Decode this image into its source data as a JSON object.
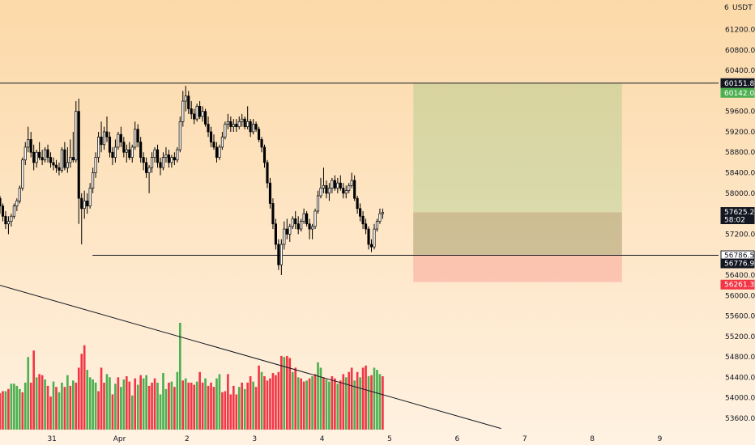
{
  "chart_data": {
    "type": "candlestick",
    "currency": "USDT",
    "price_range": [
      53400,
      62400
    ],
    "price_ticks": [
      53600,
      54000,
      54400,
      54800,
      55200,
      55600,
      56000,
      56400,
      56800,
      57200,
      57600,
      58000,
      58400,
      58800,
      59200,
      59600,
      60000,
      60400,
      60800,
      61200
    ],
    "price_tick_labels": [
      "53600.00",
      "54000.00",
      "54400.00",
      "54800.00",
      "55200.00",
      "55600.00",
      "56000.00",
      "56400.00",
      "56800.00",
      "57200.00",
      "57600.00",
      "58000.00",
      "58400.00",
      "58800.00",
      "59200.00",
      "59600.00",
      "60000.00",
      "60400.00",
      "60800.00",
      "61200.00"
    ],
    "time_labels": [
      "31",
      "Apr",
      "2",
      "3",
      "4",
      "5",
      "6",
      "7",
      "8",
      "9"
    ],
    "time_label_dayoffsets": [
      0,
      1,
      2,
      3,
      4,
      5,
      6,
      7,
      8,
      9
    ],
    "x_range_days": [
      -0.77,
      9.87
    ],
    "bars_per_day": 24,
    "candles_start_day": -0.77,
    "candles": [
      [
        57900,
        57950,
        57600,
        57750
      ],
      [
        57750,
        57800,
        57450,
        57550
      ],
      [
        57550,
        57650,
        57300,
        57400
      ],
      [
        57400,
        57550,
        57200,
        57450
      ],
      [
        57450,
        57600,
        57350,
        57550
      ],
      [
        57550,
        57800,
        57500,
        57750
      ],
      [
        57750,
        57900,
        57650,
        57850
      ],
      [
        57850,
        58150,
        57800,
        58100
      ],
      [
        58100,
        58700,
        58050,
        58650
      ],
      [
        58650,
        59000,
        58550,
        58900
      ],
      [
        58900,
        59300,
        58800,
        59050
      ],
      [
        59050,
        59200,
        58700,
        58800
      ],
      [
        58800,
        58950,
        58450,
        58600
      ],
      [
        58600,
        58850,
        58500,
        58800
      ],
      [
        58800,
        59000,
        58650,
        58700
      ],
      [
        58700,
        58850,
        58550,
        58650
      ],
      [
        58650,
        58900,
        58600,
        58850
      ],
      [
        58850,
        58950,
        58600,
        58700
      ],
      [
        58700,
        58800,
        58500,
        58600
      ],
      [
        58600,
        58700,
        58450,
        58550
      ],
      [
        58550,
        58650,
        58400,
        58500
      ],
      [
        58500,
        58600,
        58350,
        58450
      ],
      [
        58450,
        58900,
        58400,
        58850
      ],
      [
        58850,
        59000,
        58450,
        58500
      ],
      [
        58500,
        58900,
        58400,
        58600
      ],
      [
        58600,
        59050,
        58500,
        58700
      ],
      [
        58700,
        59200,
        58600,
        58650
      ],
      [
        58650,
        59800,
        58600,
        59600
      ],
      [
        59600,
        59850,
        57400,
        57900
      ],
      [
        57900,
        58000,
        57000,
        57700
      ],
      [
        57700,
        58050,
        57500,
        57850
      ],
      [
        57850,
        58000,
        57600,
        57750
      ],
      [
        57750,
        58200,
        57700,
        58100
      ],
      [
        58100,
        58500,
        58000,
        58400
      ],
      [
        58400,
        58800,
        58300,
        58700
      ],
      [
        58700,
        59200,
        58600,
        59100
      ],
      [
        59100,
        59400,
        58800,
        58950
      ],
      [
        58950,
        59300,
        58850,
        59200
      ],
      [
        59200,
        59500,
        59000,
        59100
      ],
      [
        59100,
        59200,
        58700,
        58800
      ],
      [
        58800,
        58900,
        58550,
        58700
      ],
      [
        58700,
        59050,
        58600,
        58900
      ],
      [
        58900,
        59200,
        58850,
        59150
      ],
      [
        59150,
        59300,
        58900,
        59000
      ],
      [
        59000,
        59100,
        58700,
        58800
      ],
      [
        58800,
        58950,
        58600,
        58850
      ],
      [
        58850,
        59000,
        58650,
        58700
      ],
      [
        58700,
        58950,
        58600,
        58900
      ],
      [
        58900,
        59400,
        58850,
        59250
      ],
      [
        59250,
        59350,
        58900,
        59000
      ],
      [
        59000,
        59100,
        58600,
        58700
      ],
      [
        58700,
        58800,
        58450,
        58600
      ],
      [
        58600,
        58700,
        58300,
        58400
      ],
      [
        58400,
        58550,
        58000,
        58500
      ],
      [
        58500,
        58800,
        58400,
        58700
      ],
      [
        58700,
        58900,
        58600,
        58850
      ],
      [
        58850,
        58950,
        58500,
        58600
      ],
      [
        58600,
        58700,
        58350,
        58500
      ],
      [
        58500,
        58800,
        58450,
        58700
      ],
      [
        58700,
        58900,
        58600,
        58750
      ],
      [
        58750,
        58850,
        58500,
        58600
      ],
      [
        58600,
        58750,
        58500,
        58700
      ],
      [
        58700,
        58800,
        58550,
        58650
      ],
      [
        58650,
        58900,
        58600,
        58850
      ],
      [
        58850,
        59500,
        58800,
        59400
      ],
      [
        59400,
        60000,
        59300,
        59800
      ],
      [
        59800,
        60100,
        59600,
        59900
      ],
      [
        59900,
        60000,
        59550,
        59650
      ],
      [
        59650,
        59800,
        59450,
        59550
      ],
      [
        59550,
        59650,
        59350,
        59450
      ],
      [
        59450,
        59750,
        59400,
        59700
      ],
      [
        59700,
        59800,
        59450,
        59500
      ],
      [
        59500,
        59700,
        59400,
        59600
      ],
      [
        59600,
        59650,
        59300,
        59350
      ],
      [
        59350,
        59500,
        59100,
        59200
      ],
      [
        59200,
        59300,
        58900,
        59000
      ],
      [
        59000,
        59150,
        58850,
        58900
      ],
      [
        58900,
        59000,
        58600,
        58700
      ],
      [
        58700,
        58950,
        58650,
        58900
      ],
      [
        58900,
        59200,
        58850,
        59100
      ],
      [
        59100,
        59400,
        59050,
        59350
      ],
      [
        59350,
        59550,
        59250,
        59400
      ],
      [
        59400,
        59500,
        59200,
        59300
      ],
      [
        59300,
        59450,
        59200,
        59350
      ],
      [
        59350,
        59450,
        59200,
        59300
      ],
      [
        59300,
        59500,
        59250,
        59400
      ],
      [
        59400,
        59550,
        59300,
        59450
      ],
      [
        59450,
        59500,
        59250,
        59300
      ],
      [
        59300,
        59700,
        59250,
        59400
      ],
      [
        59400,
        59450,
        59100,
        59200
      ],
      [
        59200,
        59450,
        59150,
        59350
      ],
      [
        59350,
        59400,
        59200,
        59250
      ],
      [
        59250,
        59300,
        59000,
        59050
      ],
      [
        59050,
        59100,
        58800,
        58900
      ],
      [
        58900,
        58950,
        58500,
        58600
      ],
      [
        58600,
        58650,
        58100,
        58200
      ],
      [
        58200,
        58300,
        57700,
        57800
      ],
      [
        57800,
        57900,
        57300,
        57400
      ],
      [
        57400,
        57500,
        56900,
        57000
      ],
      [
        57000,
        57100,
        56500,
        56600
      ],
      [
        56600,
        57100,
        56400,
        57000
      ],
      [
        57000,
        57450,
        56900,
        57300
      ],
      [
        57300,
        57500,
        57100,
        57200
      ],
      [
        57200,
        57400,
        57050,
        57350
      ],
      [
        57350,
        57550,
        57300,
        57500
      ],
      [
        57500,
        57650,
        57300,
        57400
      ],
      [
        57400,
        57550,
        57200,
        57300
      ],
      [
        57300,
        57500,
        57250,
        57450
      ],
      [
        57450,
        57700,
        57400,
        57600
      ],
      [
        57600,
        57650,
        57350,
        57400
      ],
      [
        57400,
        57500,
        57100,
        57300
      ],
      [
        57300,
        57400,
        57100,
        57350
      ],
      [
        57350,
        57700,
        57300,
        57650
      ],
      [
        57650,
        58050,
        57600,
        57950
      ],
      [
        57950,
        58300,
        57900,
        58100
      ],
      [
        58100,
        58500,
        58000,
        58150
      ],
      [
        58150,
        58250,
        57900,
        58000
      ],
      [
        58000,
        58200,
        57850,
        58100
      ],
      [
        58100,
        58300,
        58000,
        58250
      ],
      [
        58250,
        58350,
        58050,
        58100
      ],
      [
        58100,
        58300,
        58000,
        58200
      ],
      [
        58200,
        58350,
        58050,
        58100
      ],
      [
        58100,
        58200,
        57900,
        58000
      ],
      [
        58000,
        58150,
        57900,
        58050
      ],
      [
        58050,
        58200,
        58000,
        58150
      ],
      [
        58150,
        58400,
        58100,
        58250
      ],
      [
        58250,
        58350,
        57850,
        57900
      ],
      [
        57900,
        57950,
        57600,
        57700
      ],
      [
        57700,
        57800,
        57450,
        57550
      ],
      [
        57550,
        57650,
        57300,
        57400
      ],
      [
        57400,
        57500,
        57200,
        57300
      ],
      [
        57300,
        57350,
        56900,
        57000
      ],
      [
        57000,
        57100,
        56850,
        56950
      ],
      [
        56950,
        57400,
        56900,
        57300
      ],
      [
        57300,
        57500,
        57250,
        57450
      ],
      [
        57450,
        57700,
        57400,
        57600
      ],
      [
        57600,
        57700,
        57500,
        57625
      ]
    ],
    "volumes": [
      [
        34,
        0
      ],
      [
        36,
        0
      ],
      [
        36,
        1
      ],
      [
        38,
        0
      ],
      [
        43,
        1
      ],
      [
        43,
        1
      ],
      [
        41,
        1
      ],
      [
        38,
        1
      ],
      [
        35,
        0
      ],
      [
        44,
        1
      ],
      [
        68,
        1
      ],
      [
        44,
        0
      ],
      [
        74,
        0
      ],
      [
        49,
        1
      ],
      [
        52,
        0
      ],
      [
        51,
        0
      ],
      [
        47,
        1
      ],
      [
        41,
        0
      ],
      [
        31,
        0
      ],
      [
        45,
        1
      ],
      [
        40,
        0
      ],
      [
        35,
        1
      ],
      [
        44,
        1
      ],
      [
        40,
        0
      ],
      [
        51,
        1
      ],
      [
        41,
        0
      ],
      [
        46,
        1
      ],
      [
        44,
        0
      ],
      [
        58,
        0
      ],
      [
        71,
        0
      ],
      [
        79,
        0
      ],
      [
        56,
        1
      ],
      [
        49,
        1
      ],
      [
        47,
        1
      ],
      [
        44,
        1
      ],
      [
        36,
        0
      ],
      [
        58,
        0
      ],
      [
        44,
        0
      ],
      [
        52,
        1
      ],
      [
        49,
        1
      ],
      [
        33,
        0
      ],
      [
        43,
        1
      ],
      [
        49,
        0
      ],
      [
        40,
        1
      ],
      [
        47,
        1
      ],
      [
        50,
        0
      ],
      [
        45,
        0
      ],
      [
        32,
        1
      ],
      [
        48,
        0
      ],
      [
        42,
        1
      ],
      [
        51,
        0
      ],
      [
        48,
        1
      ],
      [
        51,
        1
      ],
      [
        41,
        0
      ],
      [
        44,
        0
      ],
      [
        48,
        0
      ],
      [
        44,
        1
      ],
      [
        33,
        1
      ],
      [
        53,
        1
      ],
      [
        38,
        1
      ],
      [
        44,
        0
      ],
      [
        45,
        1
      ],
      [
        40,
        0
      ],
      [
        54,
        1
      ],
      [
        100,
        1
      ],
      [
        46,
        0
      ],
      [
        48,
        1
      ],
      [
        44,
        0
      ],
      [
        44,
        0
      ],
      [
        42,
        0
      ],
      [
        45,
        1
      ],
      [
        54,
        0
      ],
      [
        44,
        0
      ],
      [
        48,
        1
      ],
      [
        41,
        0
      ],
      [
        44,
        0
      ],
      [
        40,
        0
      ],
      [
        48,
        1
      ],
      [
        52,
        1
      ],
      [
        35,
        0
      ],
      [
        36,
        0
      ],
      [
        52,
        0
      ],
      [
        33,
        0
      ],
      [
        41,
        0
      ],
      [
        33,
        0
      ],
      [
        40,
        1
      ],
      [
        44,
        0
      ],
      [
        38,
        1
      ],
      [
        44,
        0
      ],
      [
        50,
        0
      ],
      [
        45,
        1
      ],
      [
        40,
        0
      ],
      [
        60,
        0
      ],
      [
        54,
        1
      ],
      [
        50,
        0
      ],
      [
        46,
        0
      ],
      [
        48,
        0
      ],
      [
        53,
        0
      ],
      [
        51,
        0
      ],
      [
        54,
        0
      ],
      [
        69,
        0
      ],
      [
        68,
        1
      ],
      [
        69,
        0
      ],
      [
        67,
        0
      ],
      [
        54,
        1
      ],
      [
        58,
        0
      ],
      [
        49,
        1
      ],
      [
        48,
        0
      ],
      [
        45,
        0
      ],
      [
        46,
        1
      ],
      [
        48,
        0
      ],
      [
        50,
        1
      ],
      [
        52,
        0
      ],
      [
        63,
        1
      ],
      [
        58,
        1
      ],
      [
        49,
        0
      ],
      [
        47,
        1
      ],
      [
        45,
        1
      ],
      [
        50,
        0
      ],
      [
        48,
        0
      ],
      [
        43,
        1
      ],
      [
        46,
        0
      ],
      [
        52,
        0
      ],
      [
        49,
        1
      ],
      [
        54,
        0
      ],
      [
        58,
        0
      ],
      [
        46,
        1
      ],
      [
        54,
        0
      ],
      [
        49,
        1
      ],
      [
        58,
        0
      ],
      [
        60,
        0
      ],
      [
        50,
        1
      ],
      [
        51,
        0
      ],
      [
        58,
        1
      ],
      [
        56,
        1
      ],
      [
        52,
        1
      ],
      [
        50,
        0
      ]
    ],
    "horizontal_lines": [
      60151.87,
      56786.55,
      56776.94
    ],
    "trendline": {
      "from": {
        "day": -0.77,
        "price": 56200
      },
      "to": {
        "day": 6.65,
        "price": 53400
      }
    },
    "position": {
      "start_day": 5.35,
      "end_day": 8.44,
      "entry": 57625.28,
      "target": 60142.06,
      "stop": 56261.3
    },
    "price_tags": [
      {
        "label": "60151.87",
        "bg": "#131722",
        "fg": "#ffffff"
      },
      {
        "label": "60142.06",
        "bg": "#4caf50",
        "fg": "#ffffff"
      },
      {
        "label": "57625.28",
        "bg": "#131722",
        "fg": "#ffffff",
        "sub": "58:02"
      },
      {
        "label": "56786.55",
        "bg": "#ffffff",
        "fg": "#131722",
        "border": "#131722"
      },
      {
        "label": "56776.94",
        "bg": "#131722",
        "fg": "#ffffff"
      },
      {
        "label": "56261.30",
        "bg": "#f23645",
        "fg": "#ffffff"
      }
    ],
    "colors": {
      "up": "#4caf50",
      "down": "#f23645",
      "candle_up": "#ffffff",
      "candle_down": "#000000",
      "bg_top": "#fcd9a8",
      "bg_bottom": "#fff0dd"
    }
  }
}
